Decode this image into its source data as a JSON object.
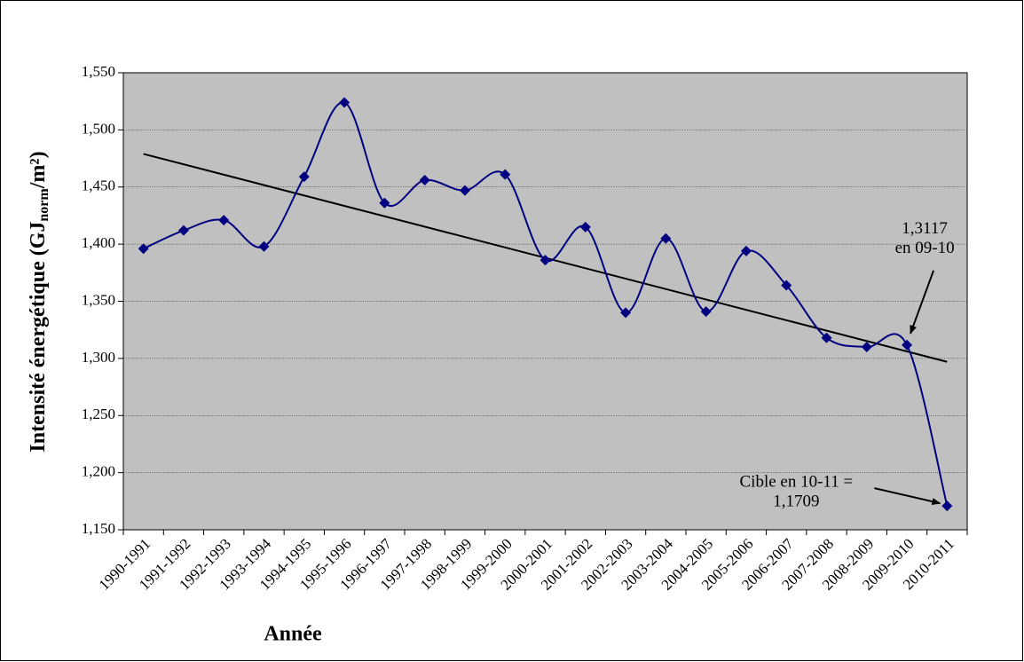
{
  "chart_data": {
    "type": "line",
    "y_label_parts": [
      "Intensité énergétique (GJ",
      "norm",
      "/m²)"
    ],
    "x_label": "Année",
    "categories": [
      "1990-1991",
      "1991-1992",
      "1992-1993",
      "1993-1994",
      "1994-1995",
      "1995-1996",
      "1996-1997",
      "1997-1998",
      "1998-1999",
      "1999-2000",
      "2000-2001",
      "2001-2002",
      "2002-2003",
      "2003-2004",
      "2004-2005",
      "2005-2006",
      "2006-2007",
      "2007-2008",
      "2008-2009",
      "2009-2010",
      "2010-2011"
    ],
    "series": [
      {
        "color": "#000080",
        "values": [
          1.396,
          1.412,
          1.421,
          1.398,
          1.459,
          1.524,
          1.436,
          1.456,
          1.447,
          1.461,
          1.386,
          1.415,
          1.34,
          1.405,
          1.341,
          1.394,
          1.364,
          1.318,
          1.31,
          1.3117,
          1.1709
        ]
      }
    ],
    "trendline": {
      "color": "#000000",
      "values": [
        1.479,
        1.297
      ]
    },
    "ylim": [
      1.15,
      1.55
    ],
    "yticks": [
      {
        "value": 1.15,
        "label": "1,150"
      },
      {
        "value": 1.2,
        "label": "1,200"
      },
      {
        "value": 1.25,
        "label": "1,250"
      },
      {
        "value": 1.3,
        "label": "1,300"
      },
      {
        "value": 1.35,
        "label": "1,350"
      },
      {
        "value": 1.4,
        "label": "1,400"
      },
      {
        "value": 1.45,
        "label": "1,450"
      },
      {
        "value": 1.5,
        "label": "1,500"
      },
      {
        "value": 1.55,
        "label": "1,550"
      }
    ],
    "grid": true,
    "plot_background": "#c0c0c0",
    "annotations": [
      {
        "lines": [
          "1,3117",
          "en 09-10"
        ],
        "point": 19
      },
      {
        "lines": [
          "Cible en 10-11 =",
          "1,1709"
        ],
        "point": 20
      }
    ]
  }
}
